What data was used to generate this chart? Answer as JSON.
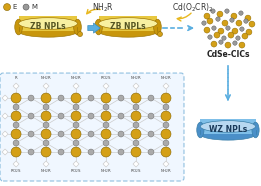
{
  "bg_color": "#ffffff",
  "legend_E_color": "#d4a017",
  "legend_M_color": "#999999",
  "npl_fill_light": "#f8f0a0",
  "npl_fill_mid": "#e8c840",
  "npl_fill_dark": "#c8960c",
  "npl_stroke": "#a07808",
  "arrow_blue_fill": "#5aaee0",
  "arrow_blue_edge": "#3a8ec0",
  "arrow_yellow": "#e8b820",
  "cdse_gold": "#d4a017",
  "cdse_grey": "#999999",
  "wz_fill_light": "#b8d8f0",
  "wz_fill_mid": "#7fbfe8",
  "wz_fill_dark": "#4a8fc8",
  "wz_stroke": "#3a7fa8",
  "dashed_box_color": "#90c0e0",
  "label_NH2R": "NH$_2$R",
  "label_Cd": "Cd(O$_2$CR)$_2$",
  "label_ZB1": "ZB NPLs",
  "label_ZB2": "ZB NPLs",
  "label_CdSe": "CdSe-CICs",
  "label_WZ": "WZ NPLs",
  "label_E": "E",
  "label_M": "M",
  "struct_Se_color": "#d4a017",
  "struct_Cd_color": "#aaaaaa",
  "struct_line_color": "#aaaaaa",
  "struct_bond_color": "#cccccc"
}
